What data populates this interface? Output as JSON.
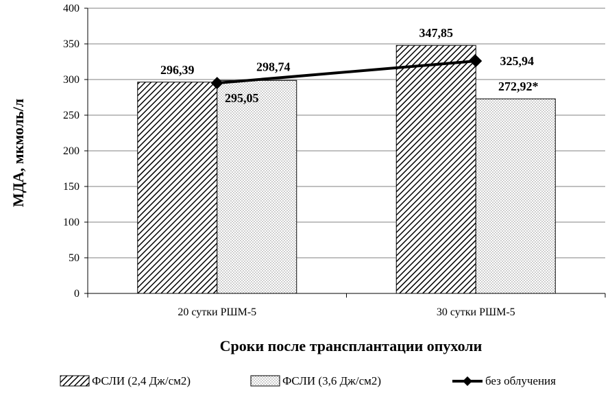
{
  "chart_data": {
    "type": "bar",
    "categories": [
      "20 сутки РШМ-5",
      "30 сутки РШМ-5"
    ],
    "series": [
      {
        "name": "ФСЛИ (2,4 Дж/см2)",
        "kind": "bar",
        "pattern": "diagonal-hatch",
        "values": [
          296.39,
          347.85
        ],
        "labels": [
          "296,39",
          "347,85"
        ]
      },
      {
        "name": "ФСЛИ (3,6 Дж/см2)",
        "kind": "bar",
        "pattern": "dots",
        "values": [
          298.74,
          272.92
        ],
        "labels": [
          "298,74",
          "272,92*"
        ]
      },
      {
        "name": "без облучения",
        "kind": "line",
        "marker": "diamond",
        "values": [
          295.05,
          325.94
        ],
        "labels": [
          "295,05",
          "325,94"
        ]
      }
    ],
    "xlabel": "Сроки после трансплантации опухоли",
    "ylabel": "МДА, мкмоль/л",
    "ylim": [
      0,
      400
    ],
    "yticks": [
      0,
      50,
      100,
      150,
      200,
      250,
      300,
      350,
      400
    ],
    "grid": true,
    "legend_position": "bottom",
    "colors": {
      "bar_stroke": "#000000",
      "line": "#000000",
      "grid": "#808080",
      "background": "#ffffff"
    }
  }
}
